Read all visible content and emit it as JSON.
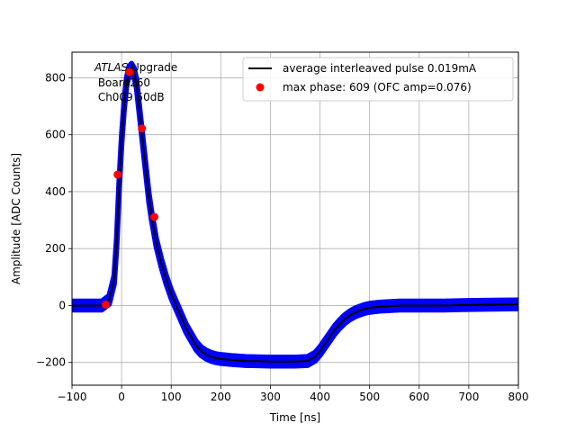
{
  "chart_data": {
    "type": "scatter",
    "xlabel": "Time [ns]",
    "ylabel": "Amplitude [ADC Counts]",
    "xlim": [
      -100,
      800
    ],
    "ylim": [
      -280,
      890
    ],
    "xticks": [
      -100,
      0,
      100,
      200,
      300,
      400,
      500,
      600,
      700,
      800
    ],
    "yticks": [
      -200,
      0,
      200,
      400,
      600,
      800
    ],
    "grid": true,
    "legend_position": "top-right",
    "annotation": {
      "italic_part": "ATLAS",
      "rest_line1": " Upgrade",
      "line2": " Board260",
      "line3": " Ch009 50dB"
    },
    "series": [
      {
        "name": "",
        "kind": "scatter-band",
        "color": "#0000ff",
        "band_halfwidth": 15,
        "x": [
          -100,
          -40,
          -25,
          -15,
          -10,
          -5,
          0,
          5,
          10,
          15,
          20,
          25,
          30,
          35,
          40,
          45,
          50,
          55,
          60,
          65,
          70,
          80,
          90,
          100,
          110,
          120,
          130,
          140,
          150,
          160,
          170,
          180,
          190,
          200,
          225,
          250,
          275,
          300,
          325,
          350,
          375,
          390,
          400,
          410,
          420,
          430,
          440,
          450,
          460,
          470,
          480,
          490,
          500,
          520,
          540,
          560,
          580,
          600,
          650,
          700,
          750,
          800
        ],
        "y": [
          0,
          0,
          20,
          90,
          220,
          420,
          580,
          700,
          785,
          825,
          835,
          820,
          780,
          700,
          620,
          540,
          460,
          380,
          320,
          270,
          220,
          150,
          90,
          40,
          0,
          -40,
          -80,
          -110,
          -140,
          -160,
          -172,
          -180,
          -185,
          -188,
          -192,
          -195,
          -196,
          -197,
          -197,
          -197,
          -195,
          -180,
          -160,
          -135,
          -110,
          -85,
          -65,
          -48,
          -35,
          -25,
          -18,
          -12,
          -8,
          -4,
          -2,
          0,
          0,
          0,
          0,
          2,
          3,
          4
        ]
      },
      {
        "name": "average interleaved pulse 0.019mA",
        "kind": "line",
        "color": "#000000",
        "x": [
          -100,
          -40,
          -25,
          -15,
          -10,
          -5,
          0,
          5,
          10,
          15,
          20,
          25,
          30,
          35,
          40,
          45,
          50,
          55,
          60,
          65,
          70,
          80,
          90,
          100,
          110,
          120,
          130,
          140,
          150,
          160,
          170,
          180,
          190,
          200,
          225,
          250,
          275,
          300,
          325,
          350,
          375,
          390,
          400,
          410,
          420,
          430,
          440,
          450,
          460,
          470,
          480,
          490,
          500,
          520,
          540,
          560,
          580,
          600,
          650,
          700,
          750,
          800
        ],
        "y": [
          0,
          0,
          20,
          90,
          220,
          420,
          580,
          700,
          785,
          825,
          835,
          820,
          780,
          700,
          620,
          540,
          460,
          380,
          320,
          270,
          220,
          150,
          90,
          40,
          0,
          -40,
          -80,
          -110,
          -140,
          -160,
          -172,
          -180,
          -185,
          -188,
          -192,
          -195,
          -196,
          -197,
          -197,
          -197,
          -195,
          -180,
          -160,
          -135,
          -110,
          -85,
          -65,
          -48,
          -35,
          -25,
          -18,
          -12,
          -8,
          -4,
          -2,
          0,
          0,
          0,
          0,
          2,
          3,
          4
        ]
      },
      {
        "name": "max phase: 609 (OFC amp=0.076)",
        "kind": "points",
        "color": "#ff0000",
        "x": [
          -32,
          -8,
          16,
          41,
          66
        ],
        "y": [
          3,
          460,
          820,
          622,
          311
        ]
      }
    ]
  }
}
